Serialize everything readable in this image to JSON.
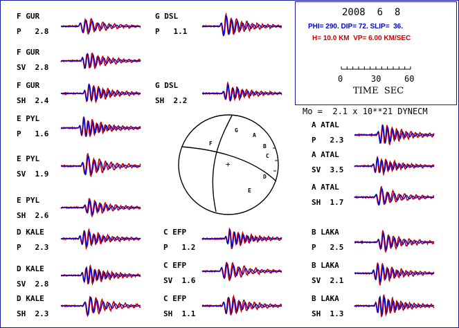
{
  "colors": {
    "observed": "#cc0000",
    "synthetic": "#0000cc",
    "frame": "#1a1aa0",
    "text": "#000000"
  },
  "header": {
    "date": "2008  6  8",
    "mechanism": "PHI= 290. DIP= 72. SLIP=  36.",
    "depth_velocity": "H= 10.0 KM  VP= 6.00 KM/SEC",
    "moment": "Mo =  2.1 x 10**21 DYNECM"
  },
  "scale_bar": {
    "ticks": [
      "0",
      "30",
      "60"
    ],
    "label": "TIME  SEC"
  },
  "stations": [
    {
      "code": "F",
      "name": "GUR",
      "phase": "P",
      "amp": "2.8"
    },
    {
      "code": "F",
      "name": "GUR",
      "phase": "SV",
      "amp": "2.8"
    },
    {
      "code": "F",
      "name": "GUR",
      "phase": "SH",
      "amp": "2.4"
    },
    {
      "code": "E",
      "name": "PYL",
      "phase": "P",
      "amp": "1.6"
    },
    {
      "code": "E",
      "name": "PYL",
      "phase": "SV",
      "amp": "1.9"
    },
    {
      "code": "E",
      "name": "PYL",
      "phase": "SH",
      "amp": "2.6"
    },
    {
      "code": "D",
      "name": "KALE",
      "phase": "P",
      "amp": "2.3"
    },
    {
      "code": "D",
      "name": "KALE",
      "phase": "SV",
      "amp": "2.8"
    },
    {
      "code": "D",
      "name": "KALE",
      "phase": "SH",
      "amp": "2.3"
    },
    {
      "code": "G",
      "name": "DSL",
      "phase": "P",
      "amp": "1.1"
    },
    {
      "code": "G",
      "name": "DSL",
      "phase": "SH",
      "amp": "2.2"
    },
    {
      "code": "C",
      "name": "EFP",
      "phase": "P",
      "amp": "1.2"
    },
    {
      "code": "C",
      "name": "EFP",
      "phase": "SV",
      "amp": "1.6"
    },
    {
      "code": "C",
      "name": "EFP",
      "phase": "SH",
      "amp": "1.1"
    },
    {
      "code": "A",
      "name": "ATAL",
      "phase": "P",
      "amp": "2.3"
    },
    {
      "code": "A",
      "name": "ATAL",
      "phase": "SV",
      "amp": "3.5"
    },
    {
      "code": "A",
      "name": "ATAL",
      "phase": "SH",
      "amp": "1.7"
    },
    {
      "code": "B",
      "name": "LAKA",
      "phase": "P",
      "amp": "2.5"
    },
    {
      "code": "B",
      "name": "LAKA",
      "phase": "SV",
      "amp": "2.1"
    },
    {
      "code": "B",
      "name": "LAKA",
      "phase": "SH",
      "amp": "1.3"
    }
  ],
  "focal_sphere": {
    "station_letters": [
      "G",
      "A",
      "B",
      "C",
      "D",
      "E",
      "F"
    ],
    "p_axis_marker": "+",
    "t_axis_marker": "x"
  }
}
